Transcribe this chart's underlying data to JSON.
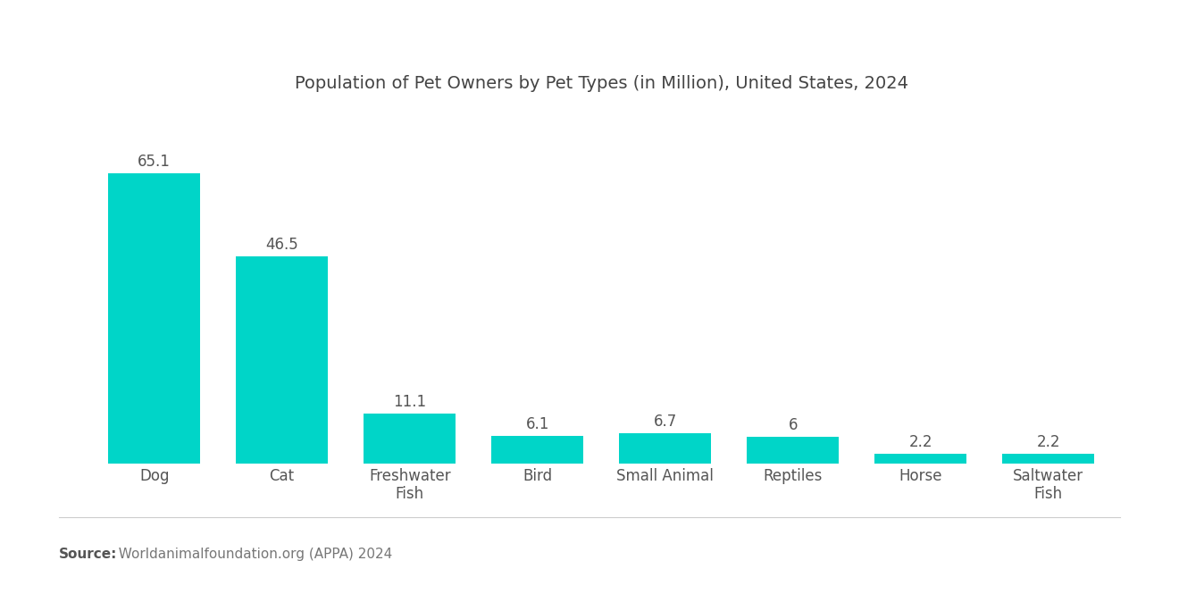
{
  "title": "Population of Pet Owners by Pet Types (in Million), United States, 2024",
  "categories": [
    "Dog",
    "Cat",
    "Freshwater\nFish",
    "Bird",
    "Small Animal",
    "Reptiles",
    "Horse",
    "Saltwater\nFish"
  ],
  "values": [
    65.1,
    46.5,
    11.1,
    6.1,
    6.7,
    6.0,
    2.2,
    2.2
  ],
  "bar_color": "#00D5C8",
  "background_color": "#ffffff",
  "title_fontsize": 14,
  "label_fontsize": 12,
  "value_fontsize": 12,
  "source_bold": "Source:",
  "source_normal": "  Worldanimalfoundation.org (APPA) 2024",
  "ylim": [
    0,
    80
  ],
  "bar_width": 0.72
}
